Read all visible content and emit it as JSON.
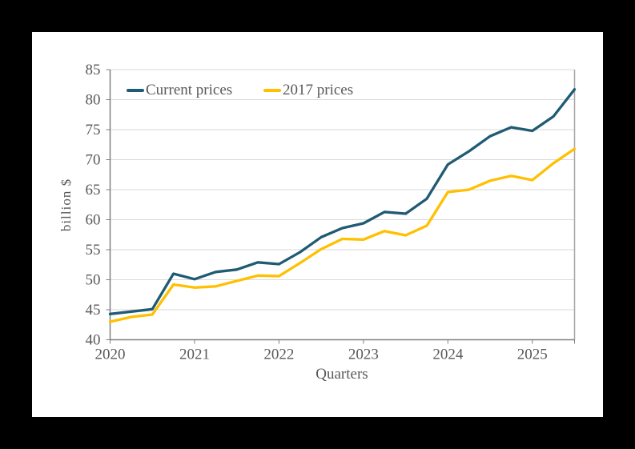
{
  "page": {
    "background_color": "#000000",
    "canvas_color": "#ffffff",
    "text_color": "#595959",
    "gridline_color": "#d9d9d9",
    "axis_color": "#808080",
    "right_border_color": "#a6a6a6"
  },
  "chart_data": {
    "type": "line",
    "title": "",
    "xlabel": "Quarters",
    "ylabel": "billion $",
    "ylim": [
      40,
      85
    ],
    "yticks": [
      40,
      45,
      50,
      55,
      60,
      65,
      70,
      75,
      80,
      85
    ],
    "grid": "horizontal",
    "legend_position": "top-left-inside",
    "x_tick_labels": [
      "2020",
      "2021",
      "2022",
      "2023",
      "2024",
      "2025"
    ],
    "x_tick_interval": 4,
    "quarters": [
      "2020 Q1",
      "2020 Q2",
      "2020 Q3",
      "2020 Q4",
      "2021 Q1",
      "2021 Q2",
      "2021 Q3",
      "2021 Q4",
      "2022 Q1",
      "2022 Q2",
      "2022 Q3",
      "2022 Q4",
      "2023 Q1",
      "2023 Q2",
      "2023 Q3",
      "2023 Q4",
      "2024 Q1",
      "2024 Q2",
      "2024 Q3",
      "2024 Q4",
      "2025 Q1",
      "2025 Q2",
      "2025 Q3"
    ],
    "series": [
      {
        "name": "Current prices",
        "color": "#1f5b73",
        "values": [
          44.3,
          44.7,
          45.1,
          51.0,
          50.1,
          51.3,
          51.7,
          52.9,
          52.6,
          54.6,
          57.1,
          58.6,
          59.4,
          61.3,
          61.0,
          63.5,
          69.2,
          71.4,
          73.9,
          75.4,
          74.8,
          77.2,
          81.7
        ]
      },
      {
        "name": "2017 prices",
        "color": "#ffc000",
        "values": [
          43.0,
          43.8,
          44.2,
          49.2,
          48.7,
          48.9,
          49.8,
          50.7,
          50.6,
          52.8,
          55.1,
          56.8,
          56.7,
          58.1,
          57.4,
          59.0,
          64.6,
          65.0,
          66.5,
          67.3,
          66.6,
          69.4,
          71.8
        ]
      }
    ]
  }
}
